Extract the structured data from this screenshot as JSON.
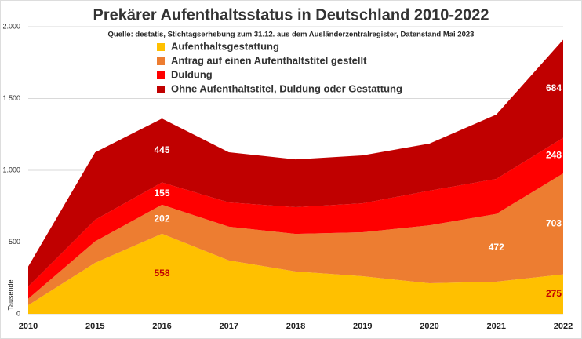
{
  "chart_data": {
    "type": "stacked_area",
    "title": "Prekärer Aufenthaltsstatus in Deutschland 2010-2022",
    "subtitle": "Quelle: destatis, Stichtagserhebung zum 31.12. aus dem Ausländerzentralregister, Datenstand Mai 2023",
    "y_label": "Tausende",
    "categories": [
      "2010",
      "2015",
      "2016",
      "2017",
      "2018",
      "2019",
      "2020",
      "2021",
      "2022"
    ],
    "series": [
      {
        "name": "Aufenthaltsgestattung",
        "color": "#ffc000",
        "values": [
          60,
          355,
          558,
          372,
          295,
          262,
          213,
          224,
          275
        ],
        "value_labels": [
          null,
          null,
          "558",
          null,
          null,
          null,
          null,
          null,
          "275"
        ]
      },
      {
        "name": "Antrag auf einen Aufenthaltstitel gestellt",
        "color": "#ed7d31",
        "values": [
          45,
          150,
          202,
          235,
          262,
          306,
          404,
          472,
          703
        ],
        "value_labels": [
          null,
          null,
          "202",
          null,
          null,
          null,
          null,
          "472",
          "703"
        ]
      },
      {
        "name": "Duldung",
        "color": "#ff0000",
        "values": [
          85,
          150,
          155,
          169,
          186,
          202,
          241,
          244,
          248
        ],
        "value_labels": [
          null,
          null,
          "155",
          null,
          null,
          null,
          null,
          null,
          "248"
        ]
      },
      {
        "name": "Ohne Aufenthaltstitel, Duldung oder Gestattung",
        "color": "#c00000",
        "values": [
          140,
          470,
          445,
          350,
          333,
          334,
          328,
          448,
          684
        ],
        "value_labels": [
          null,
          null,
          "445",
          null,
          null,
          null,
          null,
          null,
          "684"
        ]
      }
    ],
    "ylim": [
      0,
      2000
    ],
    "yticks": [
      0,
      500,
      {
        "value": 1000,
        "label": "1.000"
      },
      {
        "value": 1500,
        "label": "1.500"
      },
      {
        "value": 2000,
        "label": "2.000"
      }
    ],
    "grid": true,
    "legend": "top-left"
  }
}
